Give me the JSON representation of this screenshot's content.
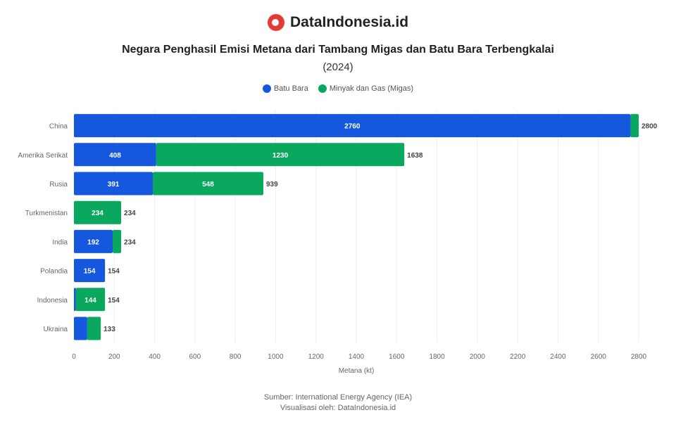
{
  "brand": {
    "name": "DataIndonesia.id"
  },
  "chart_data": {
    "type": "bar",
    "orientation": "horizontal",
    "stacked": true,
    "title": "Negara Penghasil Emisi Metana dari Tambang Migas dan Batu Bara Terbengkalai",
    "subtitle": "(2024)",
    "categories": [
      "China",
      "Amerika Serikat",
      "Rusia",
      "Turkmenistan",
      "India",
      "Polandia",
      "Indonesia",
      "Ukraina"
    ],
    "series": [
      {
        "name": "Batu Bara",
        "color": "#1558de",
        "values": [
          2760,
          408,
          391,
          0,
          192,
          154,
          10,
          66
        ]
      },
      {
        "name": "Minyak dan Gas (Migas)",
        "color": "#0aa85f",
        "values": [
          40,
          1230,
          548,
          234,
          42,
          0,
          144,
          67
        ]
      }
    ],
    "totals": [
      2800,
      1638,
      939,
      234,
      234,
      154,
      154,
      133
    ],
    "xlabel": "Metana (kt)",
    "xlim": [
      0,
      2800
    ],
    "xticks": [
      0,
      200,
      400,
      600,
      800,
      1000,
      1200,
      1400,
      1600,
      1800,
      2000,
      2200,
      2400,
      2600,
      2800
    ],
    "grid": true,
    "legend": "top"
  },
  "source": {
    "line1": "Sumber: International Energy Agency (IEA)",
    "line2": "Visualisasi oleh: DataIndonesia.id"
  }
}
